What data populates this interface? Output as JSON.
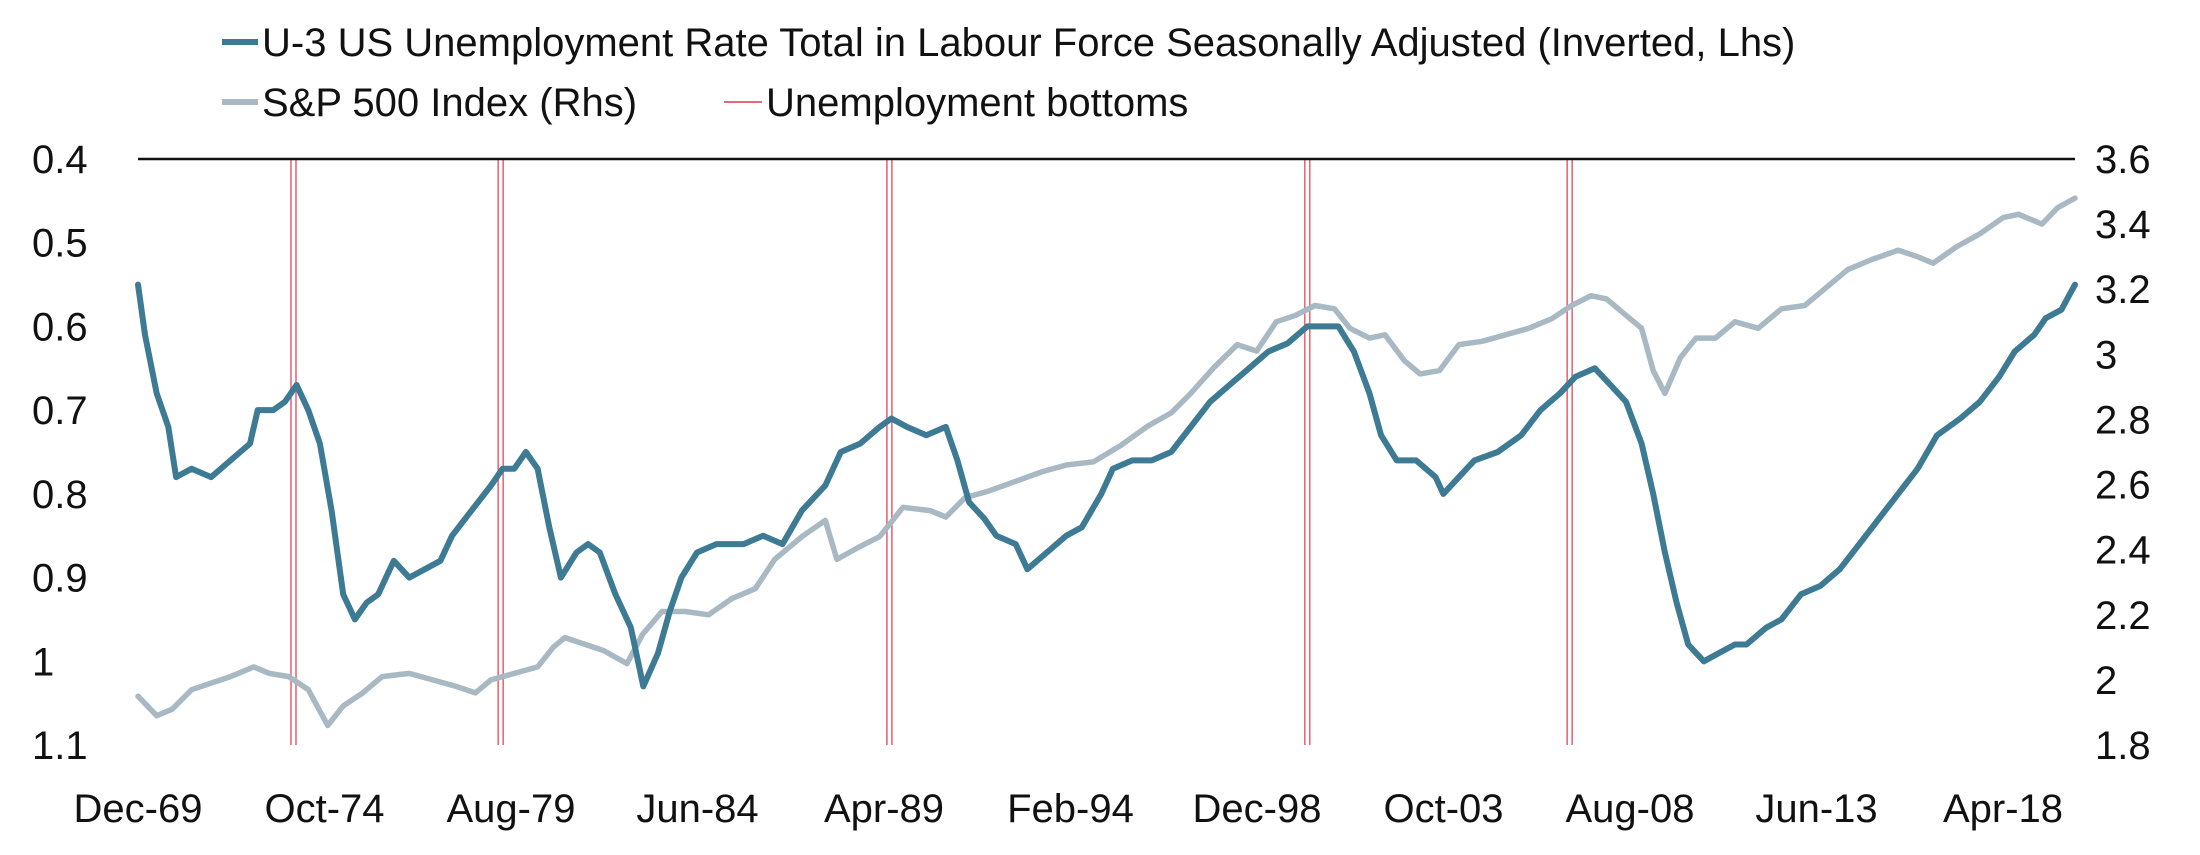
{
  "chart_data": {
    "type": "line",
    "title": "",
    "xlabel": "",
    "ylabel_left": "",
    "ylabel_right": "",
    "x_ticks": [
      "Dec-69",
      "Oct-74",
      "Aug-79",
      "Jun-84",
      "Apr-89",
      "Feb-94",
      "Dec-98",
      "Oct-03",
      "Aug-08",
      "Jun-13",
      "Apr-18"
    ],
    "x_range": [
      1969.92,
      2019.75
    ],
    "y_left_ticks": [
      "0.4",
      "0.5",
      "0.6",
      "0.7",
      "0.8",
      "0.9",
      "1",
      "1.1"
    ],
    "y_left_range": [
      0.4,
      1.1
    ],
    "y_left_inverted": true,
    "y_right_ticks": [
      "3.6",
      "3.4",
      "3.2",
      "3",
      "2.8",
      "2.6",
      "2.4",
      "2.2",
      "2",
      "1.8"
    ],
    "y_right_range": [
      1.8,
      3.6
    ],
    "grid": false,
    "legend_position": "top",
    "legend": [
      {
        "label": "U-3 US Unemployment Rate Total in Labour Force Seasonally Adjusted  (Inverted, Lhs)",
        "color": "#3d7a93",
        "kind": "line"
      },
      {
        "label": "S&P 500 Index (Rhs)",
        "color": "#a8b9c4",
        "kind": "line"
      },
      {
        "label": "Unemployment bottoms",
        "color": "#e46a78",
        "kind": "thin-line"
      }
    ],
    "series": [
      {
        "name": "U-3 US Unemployment Rate Total in Labour Force Seasonally Adjusted  (Inverted, Lhs)",
        "axis": "left",
        "color": "#3d7a93",
        "points": [
          [
            1969.92,
            0.55
          ],
          [
            1970.1,
            0.61
          ],
          [
            1970.4,
            0.68
          ],
          [
            1970.7,
            0.72
          ],
          [
            1970.9,
            0.78
          ],
          [
            1971.3,
            0.77
          ],
          [
            1971.8,
            0.78
          ],
          [
            1972.3,
            0.76
          ],
          [
            1972.8,
            0.74
          ],
          [
            1973.0,
            0.7
          ],
          [
            1973.4,
            0.7
          ],
          [
            1973.7,
            0.69
          ],
          [
            1974.0,
            0.67
          ],
          [
            1974.3,
            0.7
          ],
          [
            1974.6,
            0.74
          ],
          [
            1974.9,
            0.82
          ],
          [
            1975.2,
            0.92
          ],
          [
            1975.5,
            0.95
          ],
          [
            1975.8,
            0.93
          ],
          [
            1976.1,
            0.92
          ],
          [
            1976.5,
            0.88
          ],
          [
            1976.9,
            0.9
          ],
          [
            1977.3,
            0.89
          ],
          [
            1977.7,
            0.88
          ],
          [
            1978.0,
            0.85
          ],
          [
            1978.5,
            0.82
          ],
          [
            1979.0,
            0.79
          ],
          [
            1979.3,
            0.77
          ],
          [
            1979.6,
            0.77
          ],
          [
            1979.9,
            0.75
          ],
          [
            1980.2,
            0.77
          ],
          [
            1980.5,
            0.84
          ],
          [
            1980.8,
            0.9
          ],
          [
            1981.2,
            0.87
          ],
          [
            1981.5,
            0.86
          ],
          [
            1981.8,
            0.87
          ],
          [
            1982.2,
            0.92
          ],
          [
            1982.6,
            0.96
          ],
          [
            1982.92,
            1.03
          ],
          [
            1983.3,
            0.99
          ],
          [
            1983.6,
            0.94
          ],
          [
            1983.9,
            0.9
          ],
          [
            1984.3,
            0.87
          ],
          [
            1984.8,
            0.86
          ],
          [
            1985.5,
            0.86
          ],
          [
            1986.0,
            0.85
          ],
          [
            1986.5,
            0.86
          ],
          [
            1987.0,
            0.82
          ],
          [
            1987.6,
            0.79
          ],
          [
            1988.0,
            0.75
          ],
          [
            1988.5,
            0.74
          ],
          [
            1989.0,
            0.72
          ],
          [
            1989.3,
            0.71
          ],
          [
            1989.7,
            0.72
          ],
          [
            1990.2,
            0.73
          ],
          [
            1990.7,
            0.72
          ],
          [
            1991.0,
            0.76
          ],
          [
            1991.3,
            0.81
          ],
          [
            1991.7,
            0.83
          ],
          [
            1992.0,
            0.85
          ],
          [
            1992.5,
            0.86
          ],
          [
            1992.8,
            0.89
          ],
          [
            1993.3,
            0.87
          ],
          [
            1993.8,
            0.85
          ],
          [
            1994.2,
            0.84
          ],
          [
            1994.7,
            0.8
          ],
          [
            1995.0,
            0.77
          ],
          [
            1995.5,
            0.76
          ],
          [
            1996.0,
            0.76
          ],
          [
            1996.5,
            0.75
          ],
          [
            1997.0,
            0.72
          ],
          [
            1997.5,
            0.69
          ],
          [
            1998.0,
            0.67
          ],
          [
            1998.5,
            0.65
          ],
          [
            1999.0,
            0.63
          ],
          [
            1999.5,
            0.62
          ],
          [
            2000.0,
            0.6
          ],
          [
            2000.4,
            0.6
          ],
          [
            2000.8,
            0.6
          ],
          [
            2001.2,
            0.63
          ],
          [
            2001.6,
            0.68
          ],
          [
            2001.9,
            0.73
          ],
          [
            2002.3,
            0.76
          ],
          [
            2002.8,
            0.76
          ],
          [
            2003.3,
            0.78
          ],
          [
            2003.5,
            0.8
          ],
          [
            2003.9,
            0.78
          ],
          [
            2004.3,
            0.76
          ],
          [
            2004.9,
            0.75
          ],
          [
            2005.5,
            0.73
          ],
          [
            2006.0,
            0.7
          ],
          [
            2006.5,
            0.68
          ],
          [
            2006.9,
            0.66
          ],
          [
            2007.4,
            0.65
          ],
          [
            2007.8,
            0.67
          ],
          [
            2008.2,
            0.69
          ],
          [
            2008.6,
            0.74
          ],
          [
            2008.9,
            0.8
          ],
          [
            2009.2,
            0.87
          ],
          [
            2009.5,
            0.93
          ],
          [
            2009.8,
            0.98
          ],
          [
            2010.2,
            1.0
          ],
          [
            2010.6,
            0.99
          ],
          [
            2011.0,
            0.98
          ],
          [
            2011.3,
            0.98
          ],
          [
            2011.8,
            0.96
          ],
          [
            2012.2,
            0.95
          ],
          [
            2012.7,
            0.92
          ],
          [
            2013.2,
            0.91
          ],
          [
            2013.7,
            0.89
          ],
          [
            2014.2,
            0.86
          ],
          [
            2014.7,
            0.83
          ],
          [
            2015.2,
            0.8
          ],
          [
            2015.7,
            0.77
          ],
          [
            2016.2,
            0.73
          ],
          [
            2016.8,
            0.71
          ],
          [
            2017.3,
            0.69
          ],
          [
            2017.8,
            0.66
          ],
          [
            2018.2,
            0.63
          ],
          [
            2018.7,
            0.61
          ],
          [
            2019.0,
            0.59
          ],
          [
            2019.4,
            0.58
          ],
          [
            2019.75,
            0.55
          ]
        ]
      },
      {
        "name": "S&P 500 Index (Rhs)",
        "axis": "right",
        "color": "#a8b9c4",
        "points": [
          [
            1969.92,
            1.95
          ],
          [
            1970.4,
            1.89
          ],
          [
            1970.8,
            1.91
          ],
          [
            1971.3,
            1.97
          ],
          [
            1971.8,
            1.99
          ],
          [
            1972.3,
            2.01
          ],
          [
            1972.9,
            2.04
          ],
          [
            1973.3,
            2.02
          ],
          [
            1973.8,
            2.01
          ],
          [
            1974.3,
            1.97
          ],
          [
            1974.8,
            1.86
          ],
          [
            1975.2,
            1.92
          ],
          [
            1975.7,
            1.96
          ],
          [
            1976.2,
            2.01
          ],
          [
            1976.9,
            2.02
          ],
          [
            1977.5,
            2.0
          ],
          [
            1978.1,
            1.98
          ],
          [
            1978.6,
            1.96
          ],
          [
            1979.0,
            2.0
          ],
          [
            1979.6,
            2.02
          ],
          [
            1980.2,
            2.04
          ],
          [
            1980.6,
            2.1
          ],
          [
            1980.9,
            2.13
          ],
          [
            1981.4,
            2.11
          ],
          [
            1981.9,
            2.09
          ],
          [
            1982.5,
            2.05
          ],
          [
            1982.9,
            2.14
          ],
          [
            1983.4,
            2.21
          ],
          [
            1984.0,
            2.21
          ],
          [
            1984.6,
            2.2
          ],
          [
            1985.2,
            2.25
          ],
          [
            1985.8,
            2.28
          ],
          [
            1986.3,
            2.37
          ],
          [
            1987.0,
            2.44
          ],
          [
            1987.6,
            2.49
          ],
          [
            1987.9,
            2.37
          ],
          [
            1988.5,
            2.41
          ],
          [
            1989.0,
            2.44
          ],
          [
            1989.6,
            2.53
          ],
          [
            1990.3,
            2.52
          ],
          [
            1990.7,
            2.5
          ],
          [
            1991.2,
            2.56
          ],
          [
            1991.8,
            2.58
          ],
          [
            1992.5,
            2.61
          ],
          [
            1993.2,
            2.64
          ],
          [
            1993.8,
            2.66
          ],
          [
            1994.5,
            2.67
          ],
          [
            1995.2,
            2.72
          ],
          [
            1995.9,
            2.78
          ],
          [
            1996.5,
            2.82
          ],
          [
            1997.0,
            2.88
          ],
          [
            1997.6,
            2.96
          ],
          [
            1998.2,
            3.03
          ],
          [
            1998.7,
            3.01
          ],
          [
            1999.2,
            3.1
          ],
          [
            1999.7,
            3.12
          ],
          [
            2000.2,
            3.15
          ],
          [
            2000.7,
            3.14
          ],
          [
            2001.1,
            3.08
          ],
          [
            2001.6,
            3.05
          ],
          [
            2002.0,
            3.06
          ],
          [
            2002.5,
            2.98
          ],
          [
            2002.9,
            2.94
          ],
          [
            2003.4,
            2.95
          ],
          [
            2003.9,
            3.03
          ],
          [
            2004.5,
            3.04
          ],
          [
            2005.1,
            3.06
          ],
          [
            2005.7,
            3.08
          ],
          [
            2006.3,
            3.11
          ],
          [
            2006.8,
            3.15
          ],
          [
            2007.3,
            3.18
          ],
          [
            2007.7,
            3.17
          ],
          [
            2008.2,
            3.12
          ],
          [
            2008.6,
            3.08
          ],
          [
            2008.9,
            2.95
          ],
          [
            2009.2,
            2.88
          ],
          [
            2009.6,
            2.99
          ],
          [
            2010.0,
            3.05
          ],
          [
            2010.5,
            3.05
          ],
          [
            2011.0,
            3.1
          ],
          [
            2011.6,
            3.08
          ],
          [
            2012.2,
            3.14
          ],
          [
            2012.8,
            3.15
          ],
          [
            2013.3,
            3.2
          ],
          [
            2013.9,
            3.26
          ],
          [
            2014.5,
            3.29
          ],
          [
            2015.2,
            3.32
          ],
          [
            2015.7,
            3.3
          ],
          [
            2016.1,
            3.28
          ],
          [
            2016.7,
            3.33
          ],
          [
            2017.3,
            3.37
          ],
          [
            2017.9,
            3.42
          ],
          [
            2018.3,
            3.43
          ],
          [
            2018.9,
            3.4
          ],
          [
            2019.3,
            3.45
          ],
          [
            2019.75,
            3.48
          ]
        ]
      }
    ],
    "vertical_markers": {
      "name": "Unemployment bottoms",
      "color": "#e46a78",
      "x": [
        1973.92,
        1979.25,
        1989.25,
        2000.0,
        2006.75
      ]
    }
  }
}
